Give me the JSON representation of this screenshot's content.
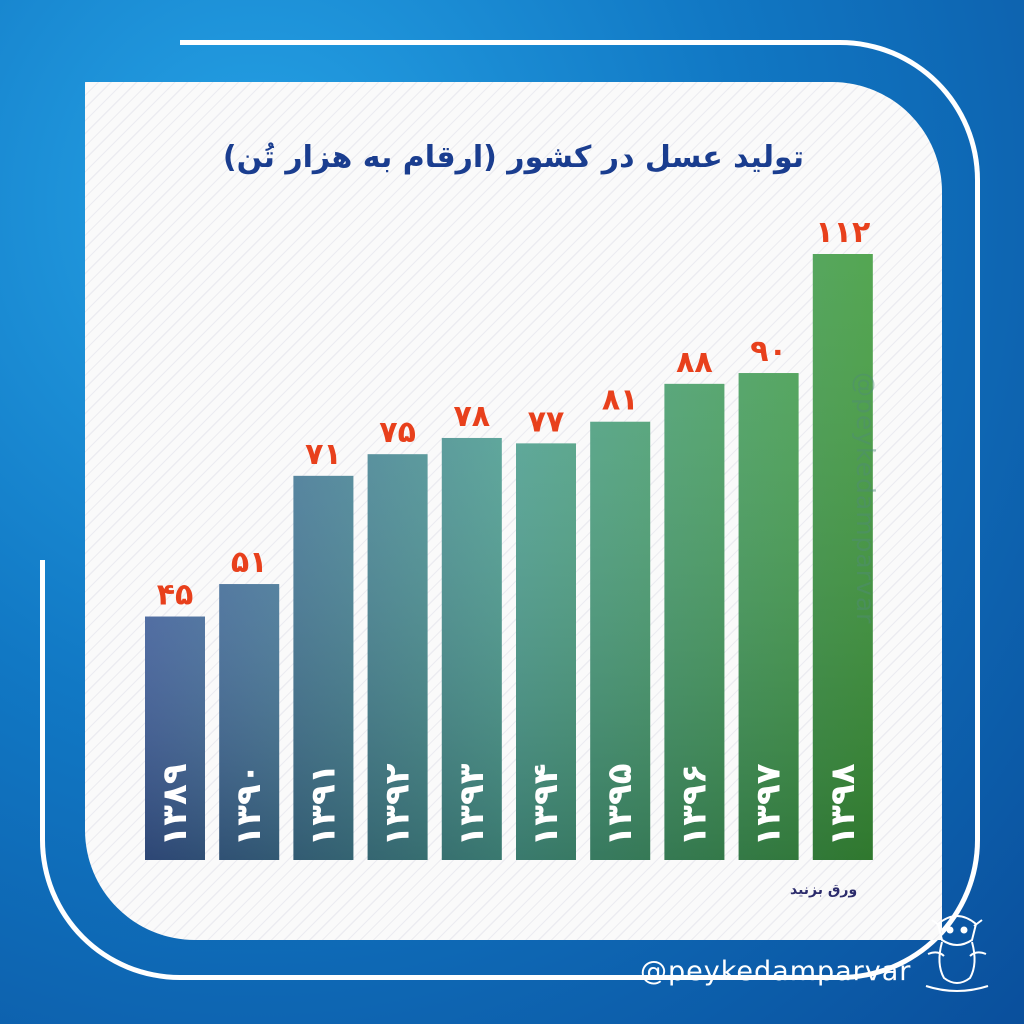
{
  "title": "تولید عسل در کشور (ارقام به هزار تُن)",
  "source_note": "ورق بزنید",
  "watermark": "@peykedamparvar",
  "footer_handle": "@peykedamparvar",
  "colors": {
    "value_label": "#e8401c",
    "bar_start": "#3a5a96",
    "bar_end": "#3d9a3a",
    "title": "#1a3d8f"
  },
  "chart_data": {
    "type": "bar",
    "title": "تولید عسل در کشور (ارقام به هزار تُن)",
    "categories": [
      "۱۳۸۹",
      "۱۳۹۰",
      "۱۳۹۱",
      "۱۳۹۲",
      "۱۳۹۳",
      "۱۳۹۴",
      "۱۳۹۵",
      "۱۳۹۶",
      "۱۳۹۷",
      "۱۳۹۸"
    ],
    "values": [
      45,
      51,
      71,
      75,
      78,
      77,
      81,
      88,
      90,
      112
    ],
    "value_labels": [
      "۴۵",
      "۵۱",
      "۷۱",
      "۷۵",
      "۷۸",
      "۷۷",
      "۸۱",
      "۸۸",
      "۹۰",
      "۱۱۲"
    ],
    "xlabel": "",
    "ylabel": "",
    "ylim": [
      0,
      112
    ],
    "grid": false,
    "legend": "none"
  }
}
